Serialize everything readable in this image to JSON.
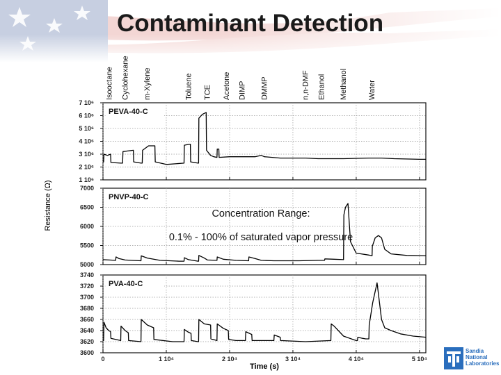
{
  "slide": {
    "title": "Contaminant Detection"
  },
  "logo": {
    "text": "Sandia\nNational\nLaboratories"
  },
  "chart_data": {
    "type": "line",
    "x_label": "Time (s)",
    "y_label": "Resistance (Ω)",
    "x_range": [
      0,
      51000
    ],
    "x_ticks": [
      {
        "value": 0,
        "label": "0"
      },
      {
        "value": 10000,
        "label": "1 10⁴"
      },
      {
        "value": 20000,
        "label": "2 10⁴"
      },
      {
        "value": 30000,
        "label": "3 10⁴"
      },
      {
        "value": 40000,
        "label": "4 10⁴"
      },
      {
        "value": 50000,
        "label": "5 10⁴"
      }
    ],
    "analytes": [
      {
        "name": "Isooctane",
        "x": 500
      },
      {
        "name": "Cyclohexane",
        "x": 3000
      },
      {
        "name": "m-Xylene",
        "x": 6500
      },
      {
        "name": "Toluene",
        "x": 13000
      },
      {
        "name": "TCE",
        "x": 16000
      },
      {
        "name": "Acetone",
        "x": 19000
      },
      {
        "name": "DIMP",
        "x": 21500
      },
      {
        "name": "DMMP",
        "x": 25000
      },
      {
        "name": "n,n-DMF",
        "x": 31500
      },
      {
        "name": "Ethanol",
        "x": 34000
      },
      {
        "name": "Methanol",
        "x": 37500
      },
      {
        "name": "Water",
        "x": 42000
      }
    ],
    "annotations": [
      "Concentration Range:",
      "0.1% - 100% of saturated vapor pressure"
    ],
    "panels": [
      {
        "name": "PEVA-40-C",
        "ylim": [
          1000000,
          7000000
        ],
        "y_ticks": [
          {
            "value": 7000000,
            "label": "7 10⁶"
          },
          {
            "value": 6000000,
            "label": "6 10⁶"
          },
          {
            "value": 5000000,
            "label": "5 10⁶"
          },
          {
            "value": 4000000,
            "label": "4 10⁶"
          },
          {
            "value": 3000000,
            "label": "3 10⁶"
          },
          {
            "value": 2000000,
            "label": "2 10⁶"
          },
          {
            "value": 1000000,
            "label": "1 10⁶"
          }
        ],
        "points": [
          [
            0,
            2400000
          ],
          [
            100,
            2400000
          ],
          [
            150,
            3000000
          ],
          [
            700,
            2900000
          ],
          [
            1200,
            3000000
          ],
          [
            1250,
            2350000
          ],
          [
            2800,
            2300000
          ],
          [
            3100,
            2300000
          ],
          [
            3150,
            3200000
          ],
          [
            3900,
            3250000
          ],
          [
            4800,
            3300000
          ],
          [
            4850,
            2400000
          ],
          [
            6000,
            2300000
          ],
          [
            6200,
            2300000
          ],
          [
            6250,
            3300000
          ],
          [
            7200,
            3650000
          ],
          [
            8200,
            3650000
          ],
          [
            8250,
            2400000
          ],
          [
            10000,
            2200000
          ],
          [
            12800,
            2300000
          ],
          [
            12850,
            3700000
          ],
          [
            13400,
            3750000
          ],
          [
            13800,
            3780000
          ],
          [
            13850,
            2400000
          ],
          [
            15000,
            2300000
          ],
          [
            15100,
            2300000
          ],
          [
            15150,
            5800000
          ],
          [
            15700,
            6100000
          ],
          [
            16300,
            6250000
          ],
          [
            16350,
            3300000
          ],
          [
            17000,
            2900000
          ],
          [
            17500,
            2800000
          ],
          [
            18000,
            2750000
          ],
          [
            18050,
            3400000
          ],
          [
            18300,
            3400000
          ],
          [
            18350,
            2750000
          ],
          [
            20000,
            2800000
          ],
          [
            22000,
            2800000
          ],
          [
            24000,
            2800000
          ],
          [
            25000,
            2900000
          ],
          [
            25500,
            2800000
          ],
          [
            28000,
            2700000
          ],
          [
            30000,
            2700000
          ],
          [
            32000,
            2700000
          ],
          [
            34000,
            2650000
          ],
          [
            38000,
            2650000
          ],
          [
            42000,
            2700000
          ],
          [
            44000,
            2700000
          ],
          [
            46000,
            2650000
          ],
          [
            50000,
            2600000
          ],
          [
            51000,
            2600000
          ]
        ]
      },
      {
        "name": "PNVP-40-C",
        "ylim": [
          5000,
          7000
        ],
        "y_ticks": [
          {
            "value": 7000,
            "label": "7000"
          },
          {
            "value": 6500,
            "label": "6500"
          },
          {
            "value": 6000,
            "label": "6000"
          },
          {
            "value": 5500,
            "label": "5500"
          },
          {
            "value": 5000,
            "label": "5000"
          }
        ],
        "points": [
          [
            0,
            5130
          ],
          [
            2000,
            5110
          ],
          [
            2050,
            5200
          ],
          [
            2500,
            5160
          ],
          [
            3500,
            5120
          ],
          [
            4500,
            5110
          ],
          [
            6000,
            5100
          ],
          [
            6050,
            5230
          ],
          [
            7000,
            5170
          ],
          [
            9000,
            5110
          ],
          [
            12000,
            5090
          ],
          [
            12800,
            5090
          ],
          [
            12850,
            5180
          ],
          [
            13500,
            5130
          ],
          [
            15000,
            5090
          ],
          [
            15100,
            5090
          ],
          [
            15150,
            5240
          ],
          [
            16000,
            5170
          ],
          [
            16500,
            5120
          ],
          [
            18000,
            5110
          ],
          [
            18050,
            5200
          ],
          [
            19000,
            5140
          ],
          [
            21000,
            5110
          ],
          [
            23000,
            5100
          ],
          [
            23050,
            5200
          ],
          [
            24000,
            5160
          ],
          [
            25000,
            5110
          ],
          [
            27000,
            5100
          ],
          [
            29000,
            5100
          ],
          [
            31000,
            5100
          ],
          [
            34000,
            5110
          ],
          [
            35000,
            5110
          ],
          [
            35050,
            5150
          ],
          [
            36500,
            5140
          ],
          [
            38000,
            5130
          ],
          [
            38050,
            6300
          ],
          [
            38300,
            6500
          ],
          [
            38700,
            6600
          ],
          [
            39100,
            5600
          ],
          [
            40000,
            5300
          ],
          [
            42000,
            5250
          ],
          [
            42500,
            5230
          ],
          [
            42550,
            5480
          ],
          [
            43000,
            5700
          ],
          [
            43500,
            5760
          ],
          [
            44000,
            5700
          ],
          [
            44500,
            5400
          ],
          [
            45500,
            5280
          ],
          [
            48000,
            5240
          ],
          [
            51000,
            5230
          ]
        ]
      },
      {
        "name": "PVA-40-C",
        "ylim": [
          3600,
          3740
        ],
        "y_ticks": [
          {
            "value": 3740,
            "label": "3740"
          },
          {
            "value": 3720,
            "label": "3720"
          },
          {
            "value": 3700,
            "label": "3700"
          },
          {
            "value": 3680,
            "label": "3680"
          },
          {
            "value": 3660,
            "label": "3660"
          },
          {
            "value": 3640,
            "label": "3640"
          },
          {
            "value": 3620,
            "label": "3620"
          },
          {
            "value": 3600,
            "label": "3600"
          }
        ],
        "points": [
          [
            0,
            3622
          ],
          [
            100,
            3622
          ],
          [
            150,
            3655
          ],
          [
            500,
            3645
          ],
          [
            900,
            3640
          ],
          [
            1200,
            3638
          ],
          [
            1250,
            3626
          ],
          [
            2800,
            3622
          ],
          [
            2850,
            3648
          ],
          [
            3500,
            3640
          ],
          [
            4000,
            3636
          ],
          [
            4050,
            3622
          ],
          [
            6000,
            3620
          ],
          [
            6050,
            3660
          ],
          [
            7000,
            3650
          ],
          [
            8000,
            3645
          ],
          [
            8050,
            3624
          ],
          [
            11000,
            3620
          ],
          [
            12800,
            3620
          ],
          [
            12850,
            3642
          ],
          [
            13500,
            3637
          ],
          [
            13900,
            3635
          ],
          [
            13950,
            3622
          ],
          [
            15000,
            3620
          ],
          [
            15100,
            3620
          ],
          [
            15150,
            3660
          ],
          [
            16000,
            3652
          ],
          [
            17000,
            3650
          ],
          [
            17050,
            3625
          ],
          [
            18000,
            3622
          ],
          [
            18050,
            3652
          ],
          [
            19000,
            3644
          ],
          [
            19800,
            3640
          ],
          [
            19850,
            3624
          ],
          [
            21000,
            3622
          ],
          [
            22500,
            3622
          ],
          [
            22550,
            3638
          ],
          [
            23500,
            3633
          ],
          [
            23550,
            3622
          ],
          [
            26000,
            3622
          ],
          [
            27000,
            3622
          ],
          [
            27050,
            3632
          ],
          [
            28000,
            3628
          ],
          [
            28050,
            3622
          ],
          [
            32000,
            3620
          ],
          [
            36000,
            3622
          ],
          [
            36050,
            3652
          ],
          [
            36500,
            3648
          ],
          [
            38000,
            3630
          ],
          [
            40000,
            3622
          ],
          [
            40200,
            3622
          ],
          [
            40250,
            3628
          ],
          [
            41000,
            3626
          ],
          [
            41500,
            3625
          ],
          [
            42000,
            3625
          ],
          [
            42050,
            3650
          ],
          [
            42600,
            3690
          ],
          [
            43300,
            3726
          ],
          [
            44000,
            3660
          ],
          [
            44500,
            3645
          ],
          [
            45500,
            3640
          ],
          [
            47000,
            3634
          ],
          [
            49000,
            3630
          ],
          [
            51000,
            3628
          ]
        ]
      }
    ]
  }
}
